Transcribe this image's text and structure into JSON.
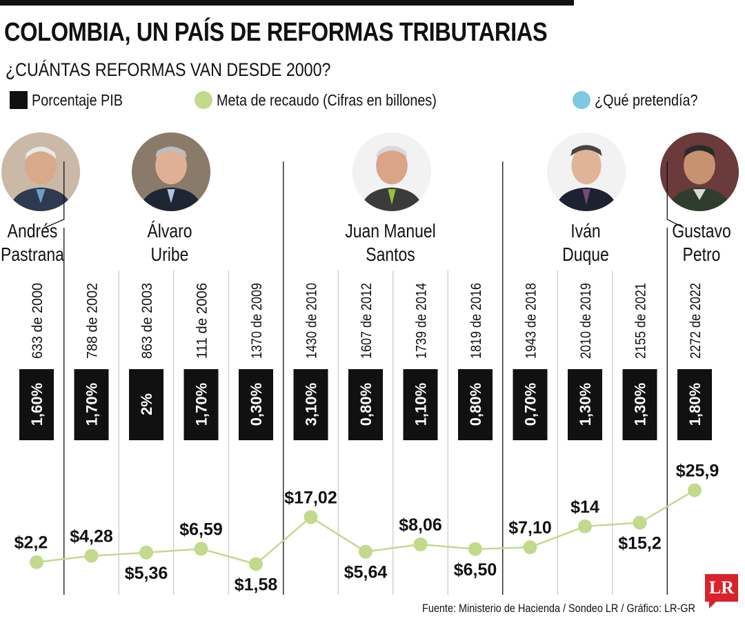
{
  "header": {
    "title": "COLOMBIA, UN PAÍS DE REFORMAS TRIBUTARIAS",
    "subtitle": "¿CUÁNTAS REFORMAS VAN DESDE 2000?"
  },
  "legend": [
    {
      "label": "Porcentaje PIB",
      "color": "#111111",
      "shape": "square"
    },
    {
      "label": "Meta de recaudo (Cifras en billones)",
      "color": "#c3d98c",
      "shape": "circle"
    },
    {
      "label": "¿Qué pretendía?",
      "color": "#7fc8e3",
      "shape": "circle"
    }
  ],
  "presidents": [
    {
      "name_line1": "Andrés",
      "name_line2": "Pastrana"
    },
    {
      "name_line1": "Álvaro",
      "name_line2": "Uribe"
    },
    {
      "name_line1": "Juan Manuel",
      "name_line2": "Santos"
    },
    {
      "name_line1": "Iván",
      "name_line2": "Duque"
    },
    {
      "name_line1": "Gustavo",
      "name_line2": "Petro"
    }
  ],
  "chart_data": {
    "type": "line",
    "categories": [
      "633 de 2000",
      "788 de 2002",
      "863 de 2003",
      "111 de 2006",
      "1370 de 2009",
      "1430 de 2010",
      "1607 de 2012",
      "1739 de 2014",
      "1819 de 2016",
      "1943 de 2018",
      "2010 de 2019",
      "2155 de 2021",
      "2272 de 2022"
    ],
    "pib_labels": [
      "1,60%",
      "1,70%",
      "2%",
      "1,70%",
      "0,30%",
      "3,10%",
      "0,80%",
      "1,10%",
      "0,80%",
      "0,70%",
      "1,30%",
      "1,30%",
      "1,80%"
    ],
    "pib_values": [
      1.6,
      1.7,
      2.0,
      1.7,
      0.3,
      3.1,
      0.8,
      1.1,
      0.8,
      0.7,
      1.3,
      1.3,
      1.8
    ],
    "series": [
      {
        "name": "Meta de recaudo (Cifras en billones)",
        "values": [
          2.2,
          4.28,
          5.36,
          6.59,
          1.58,
          17.02,
          5.64,
          8.06,
          6.5,
          7.1,
          14,
          15.2,
          25.9
        ],
        "labels": [
          "$2,2",
          "$4,28",
          "$5,36",
          "$6,59",
          "$1,58",
          "$17,02",
          "$5,64",
          "$8,06",
          "$6,50",
          "$7,10",
          "$14",
          "$15,2",
          "$25,9"
        ]
      }
    ],
    "line_color": "#c3d98c",
    "marker_color": "#c3d98c"
  },
  "footer": {
    "source": "Fuente: Ministerio de Hacienda / Sondeo LR / Gráfico: LR-GR",
    "logo": "LR"
  }
}
